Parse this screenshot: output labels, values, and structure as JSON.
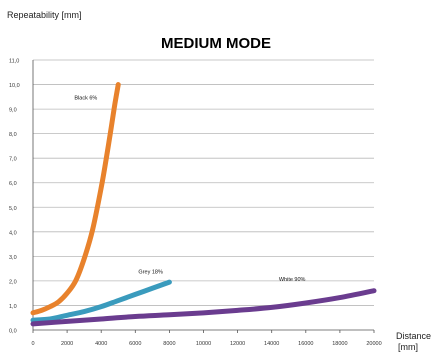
{
  "chart_data": {
    "type": "line",
    "title": "MEDIUM MODE",
    "ylabel": "Repeatability [mm]",
    "xlabel_line1": "Distance",
    "xlabel_line2": "[mm]",
    "xlim": [
      0,
      20000
    ],
    "ylim": [
      0,
      11
    ],
    "x_ticks": [
      "0",
      "2000",
      "4000",
      "6000",
      "8000",
      "10000",
      "12000",
      "14000",
      "16000",
      "18000",
      "20000"
    ],
    "y_ticks": [
      "0,0",
      "1,0",
      "2,0",
      "3,0",
      "4,0",
      "5,0",
      "6,0",
      "7,0",
      "8,0",
      "9,0",
      "10,0",
      "11,0"
    ],
    "grid": true,
    "series": [
      {
        "name": "Black 6%",
        "color": "#e8822c",
        "label_at": [
          3100,
          9.4
        ],
        "x": [
          0,
          500,
          1000,
          1500,
          2000,
          2500,
          3000,
          3500,
          4000,
          4300,
          4600,
          4800,
          5000
        ],
        "y": [
          0.7,
          0.8,
          0.95,
          1.15,
          1.5,
          2.0,
          2.9,
          4.1,
          5.8,
          7.0,
          8.3,
          9.2,
          10.0
        ]
      },
      {
        "name": "Grey 18%",
        "color": "#3a9bbd",
        "label_at": [
          6900,
          2.3
        ],
        "x": [
          0,
          1000,
          2000,
          3000,
          4000,
          5000,
          6000,
          7000,
          8000
        ],
        "y": [
          0.4,
          0.45,
          0.6,
          0.75,
          0.95,
          1.2,
          1.45,
          1.7,
          1.95
        ]
      },
      {
        "name": "White 90%",
        "color": "#6a3c8f",
        "label_at": [
          15200,
          2.0
        ],
        "x": [
          0,
          2000,
          4000,
          6000,
          8000,
          10000,
          12000,
          14000,
          16000,
          18000,
          20000
        ],
        "y": [
          0.25,
          0.35,
          0.45,
          0.55,
          0.62,
          0.7,
          0.8,
          0.92,
          1.1,
          1.32,
          1.6
        ]
      }
    ]
  }
}
